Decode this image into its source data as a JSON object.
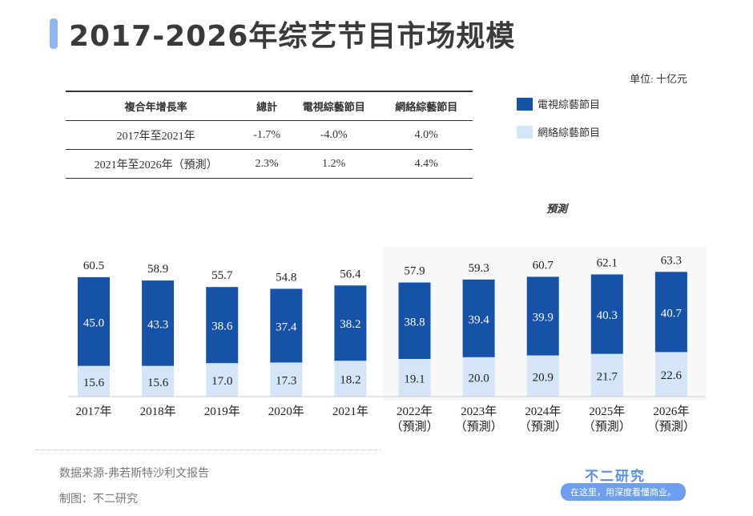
{
  "title": "2017-2026年综艺节目市场规模",
  "unit": "单位: 十亿元",
  "cagr_table": {
    "headers": [
      "複合年增長率",
      "總計",
      "電視綜藝節目",
      "網絡綜藝節目"
    ],
    "rows": [
      [
        "2017年至2021年",
        "-1.7%",
        "-4.0%",
        "4.0%"
      ],
      [
        "2021年至2026年（預測）",
        "2.3%",
        "1.2%",
        "4.4%"
      ]
    ]
  },
  "forecast_label": "預測",
  "footer": {
    "source": "数据来源-弗若斯特沙利文报告",
    "made_by": "制图：不二研究",
    "brand": "不二研究",
    "slogan": "在这里，用深度看懂商业。"
  },
  "chart_data": {
    "type": "bar",
    "stacked": true,
    "legend_position": "top-right",
    "categories": [
      "2017年",
      "2018年",
      "2019年",
      "2020年",
      "2021年",
      "2022年\n（預測）",
      "2023年\n（預測）",
      "2024年\n（預測）",
      "2025年\n（預測）",
      "2026年\n（預測）"
    ],
    "series": [
      {
        "name": "電視綜藝節目",
        "color": "#1552a8",
        "values": [
          45.0,
          43.3,
          38.6,
          37.4,
          38.2,
          38.8,
          39.4,
          39.9,
          40.3,
          40.7
        ]
      },
      {
        "name": "網絡綜藝節目",
        "color": "#d3e5f6",
        "values": [
          15.6,
          15.6,
          17.0,
          17.3,
          18.2,
          19.1,
          20.0,
          20.9,
          21.7,
          22.6
        ]
      }
    ],
    "totals": [
      60.5,
      58.9,
      55.7,
      54.8,
      56.4,
      57.9,
      59.3,
      60.7,
      62.1,
      63.3
    ]
  }
}
